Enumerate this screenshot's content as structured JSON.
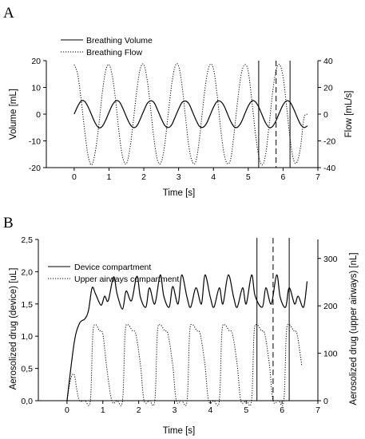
{
  "panels": [
    {
      "letter": "A",
      "xlabel": "Time [s]",
      "ylabel_left": "Volume [mL]",
      "ylabel_right": "Flow [mL/s]",
      "legend": [
        {
          "name": "Breathing Volume",
          "style": "solid"
        },
        {
          "name": "Breathing Flow",
          "style": "dotted"
        }
      ]
    },
    {
      "letter": "B",
      "xlabel": "Time [s]",
      "ylabel_left": "Aerosolized drug (device) [uL]",
      "ylabel_right": "Aerosolized drug (upper airways) [nL]",
      "legend": [
        {
          "name": "Device compartment",
          "style": "solid"
        },
        {
          "name": "Upper airways compartment",
          "style": "dotted"
        }
      ]
    }
  ],
  "chart_data": [
    {
      "type": "line",
      "title": "",
      "xlabel": "Time [s]",
      "ylabel": "Volume [mL]",
      "y2label": "Flow [mL/s]",
      "xlim": [
        -0.8,
        7
      ],
      "ylim": [
        -20,
        20
      ],
      "y2lim": [
        -40,
        40
      ],
      "xticks": [
        "0",
        "1",
        "2",
        "3",
        "4",
        "5",
        "6",
        "7"
      ],
      "yticks": [
        "-20",
        "-10",
        "0",
        "10",
        "20"
      ],
      "y2ticks": [
        "-40",
        "-20",
        "0",
        "20",
        "40"
      ],
      "grid": false,
      "legend_position": "top-left",
      "series": [
        {
          "name": "Breathing Volume",
          "axis": "left",
          "style": "solid",
          "x": [
            0,
            0.1,
            0.2,
            0.3,
            0.4,
            0.5,
            0.6,
            0.7,
            0.8,
            0.9,
            1.0,
            1.1,
            1.2,
            1.3,
            1.4,
            1.5,
            1.6,
            1.7,
            1.8,
            1.9,
            2.0,
            2.1,
            2.2,
            2.3,
            2.4,
            2.5,
            2.6,
            2.7,
            2.8,
            2.9,
            3.0,
            3.1,
            3.2,
            3.3,
            3.4,
            3.5,
            3.6,
            3.7,
            3.8,
            3.9,
            4.0,
            4.1,
            4.2,
            4.3,
            4.4,
            4.5,
            4.6,
            4.7,
            4.8,
            4.9,
            5.0,
            5.1,
            5.2,
            5.3,
            5.4,
            5.5,
            5.6,
            5.7,
            5.8,
            5.9,
            6.0,
            6.1,
            6.2,
            6.3,
            6.4,
            6.5,
            6.6,
            6.7
          ],
          "y": [
            0,
            2.9,
            4.9,
            4.8,
            2.7,
            -0.3,
            -3.2,
            -5.0,
            -4.7,
            -2.4,
            0.7,
            3.5,
            5.0,
            4.6,
            2.1,
            -1.0,
            -3.7,
            -5.0,
            -4.4,
            -1.8,
            1.3,
            4.0,
            5.0,
            4.2,
            1.4,
            -1.6,
            -4.2,
            -5.0,
            -4.0,
            -1.1,
            1.9,
            4.4,
            4.9,
            3.8,
            0.8,
            -2.2,
            -4.6,
            -4.9,
            -3.5,
            -0.5,
            2.5,
            4.7,
            4.8,
            3.2,
            0.2,
            -2.8,
            -4.8,
            -4.8,
            -3.0,
            0.1,
            3.0,
            4.9,
            4.7,
            2.7,
            -0.4,
            -3.3,
            -5.0,
            -4.6,
            -2.4,
            0.7,
            3.5,
            5.0,
            4.5,
            2.1,
            -1.0,
            -3.8,
            -5.0,
            -4.4
          ]
        },
        {
          "name": "Breathing Flow",
          "axis": "right",
          "style": "dotted",
          "x": [
            0,
            0.1,
            0.2,
            0.3,
            0.4,
            0.5,
            0.6,
            0.7,
            0.8,
            0.9,
            1.0,
            1.1,
            1.2,
            1.3,
            1.4,
            1.5,
            1.6,
            1.7,
            1.8,
            1.9,
            2.0,
            2.1,
            2.2,
            2.3,
            2.4,
            2.5,
            2.6,
            2.7,
            2.8,
            2.9,
            3.0,
            3.1,
            3.2,
            3.3,
            3.4,
            3.5,
            3.6,
            3.7,
            3.8,
            3.9,
            4.0,
            4.1,
            4.2,
            4.3,
            4.4,
            4.5,
            4.6,
            4.7,
            4.8,
            4.9,
            5.0,
            5.1,
            5.2,
            5.3,
            5.4,
            5.5,
            5.6,
            5.7,
            5.8,
            5.9,
            6.0,
            6.1,
            6.2,
            6.3,
            6.4,
            6.5,
            6.6,
            6.7
          ],
          "y": [
            37,
            30,
            11,
            -12,
            -31,
            -38,
            -29,
            -10,
            14,
            32,
            37,
            28,
            8,
            -16,
            -33,
            -37,
            -26,
            -5,
            18,
            34,
            37,
            25,
            3,
            -20,
            -35,
            -36,
            -23,
            0,
            22,
            36,
            36,
            21,
            -3,
            -25,
            -36,
            -35,
            -18,
            6,
            27,
            37,
            34,
            16,
            -9,
            -29,
            -37,
            -33,
            -13,
            11,
            30,
            37,
            32,
            11,
            -13,
            -31,
            -38,
            -30,
            -8,
            16,
            33,
            37,
            28,
            6,
            -18,
            -34,
            -36,
            -25,
            -3,
            0
          ]
        }
      ],
      "markers": [
        {
          "x": 5.3,
          "style": "solid"
        },
        {
          "x": 5.8,
          "style": "dashed"
        },
        {
          "x": 6.2,
          "style": "solid"
        }
      ]
    },
    {
      "type": "line",
      "title": "",
      "xlabel": "Time [s]",
      "ylabel": "Aerosolized drug (device) [uL]",
      "y2label": "Aerosolized drug (upper airways) [nL]",
      "xlim": [
        -0.8,
        7
      ],
      "ylim": [
        0,
        2.5
      ],
      "y2lim": [
        0,
        340
      ],
      "xticks": [
        "0",
        "1",
        "2",
        "3",
        "4",
        "5",
        "6",
        "7"
      ],
      "yticks": [
        "0,0",
        "0,5",
        "1,0",
        "1,5",
        "2,0",
        "2,5"
      ],
      "y2ticks": [
        "0",
        "100",
        "200",
        "300"
      ],
      "grid": false,
      "legend_position": "top-left",
      "series": [
        {
          "name": "Device compartment",
          "axis": "left",
          "style": "solid",
          "x": [
            0,
            0.2,
            0.35,
            0.5,
            0.6,
            0.7,
            0.8,
            0.95,
            1.05,
            1.15,
            1.3,
            1.4,
            1.55,
            1.65,
            1.8,
            1.95,
            2.05,
            2.2,
            2.3,
            2.45,
            2.6,
            2.7,
            2.85,
            2.95,
            3.1,
            3.2,
            3.35,
            3.45,
            3.6,
            3.75,
            3.85,
            4.0,
            4.1,
            4.25,
            4.35,
            4.5,
            4.65,
            4.75,
            4.9,
            5.0,
            5.15,
            5.25,
            5.45,
            5.55,
            5.7,
            5.85,
            5.95,
            6.1,
            6.2,
            6.35,
            6.45,
            6.6,
            6.7
          ],
          "y": [
            0,
            0.9,
            1.2,
            1.27,
            1.4,
            1.75,
            1.65,
            1.48,
            1.62,
            1.55,
            1.92,
            1.65,
            1.42,
            1.7,
            1.55,
            1.93,
            1.6,
            1.45,
            1.75,
            1.5,
            1.95,
            1.62,
            1.45,
            1.77,
            1.5,
            1.95,
            1.6,
            1.45,
            1.75,
            1.5,
            1.95,
            1.6,
            1.45,
            1.75,
            1.5,
            1.95,
            1.6,
            1.45,
            1.75,
            1.5,
            1.95,
            1.62,
            1.45,
            1.75,
            1.5,
            1.95,
            1.6,
            1.45,
            1.75,
            1.5,
            1.62,
            1.45,
            1.85
          ]
        },
        {
          "name": "Upper airways compartment",
          "axis": "right",
          "style": "dotted",
          "x": [
            0,
            0.1,
            0.2,
            0.28,
            0.35,
            0.5,
            0.65,
            0.72,
            0.8,
            0.9,
            1.0,
            1.1,
            1.25,
            1.4,
            1.55,
            1.62,
            1.7,
            1.82,
            1.92,
            2.05,
            2.15,
            2.3,
            2.45,
            2.52,
            2.6,
            2.72,
            2.82,
            2.95,
            3.05,
            3.2,
            3.35,
            3.42,
            3.5,
            3.62,
            3.72,
            3.85,
            3.95,
            4.1,
            4.25,
            4.32,
            4.4,
            4.52,
            4.62,
            4.75,
            4.85,
            5.0,
            5.15,
            5.22,
            5.3,
            5.42,
            5.52,
            5.65,
            5.75,
            5.9,
            6.05,
            6.12,
            6.2,
            6.32,
            6.42,
            6.55
          ],
          "y": [
            0,
            45,
            55,
            20,
            0,
            0,
            0,
            140,
            160,
            148,
            140,
            75,
            0,
            0,
            0,
            142,
            160,
            148,
            140,
            75,
            0,
            0,
            0,
            142,
            160,
            148,
            140,
            75,
            0,
            0,
            0,
            142,
            160,
            148,
            140,
            75,
            0,
            0,
            0,
            142,
            160,
            148,
            140,
            75,
            0,
            0,
            0,
            142,
            160,
            148,
            140,
            75,
            0,
            0,
            0,
            142,
            160,
            148,
            140,
            75
          ]
        }
      ],
      "markers": [
        {
          "x": 5.3,
          "style": "solid"
        },
        {
          "x": 5.75,
          "style": "dashed"
        },
        {
          "x": 6.2,
          "style": "solid"
        }
      ]
    }
  ]
}
